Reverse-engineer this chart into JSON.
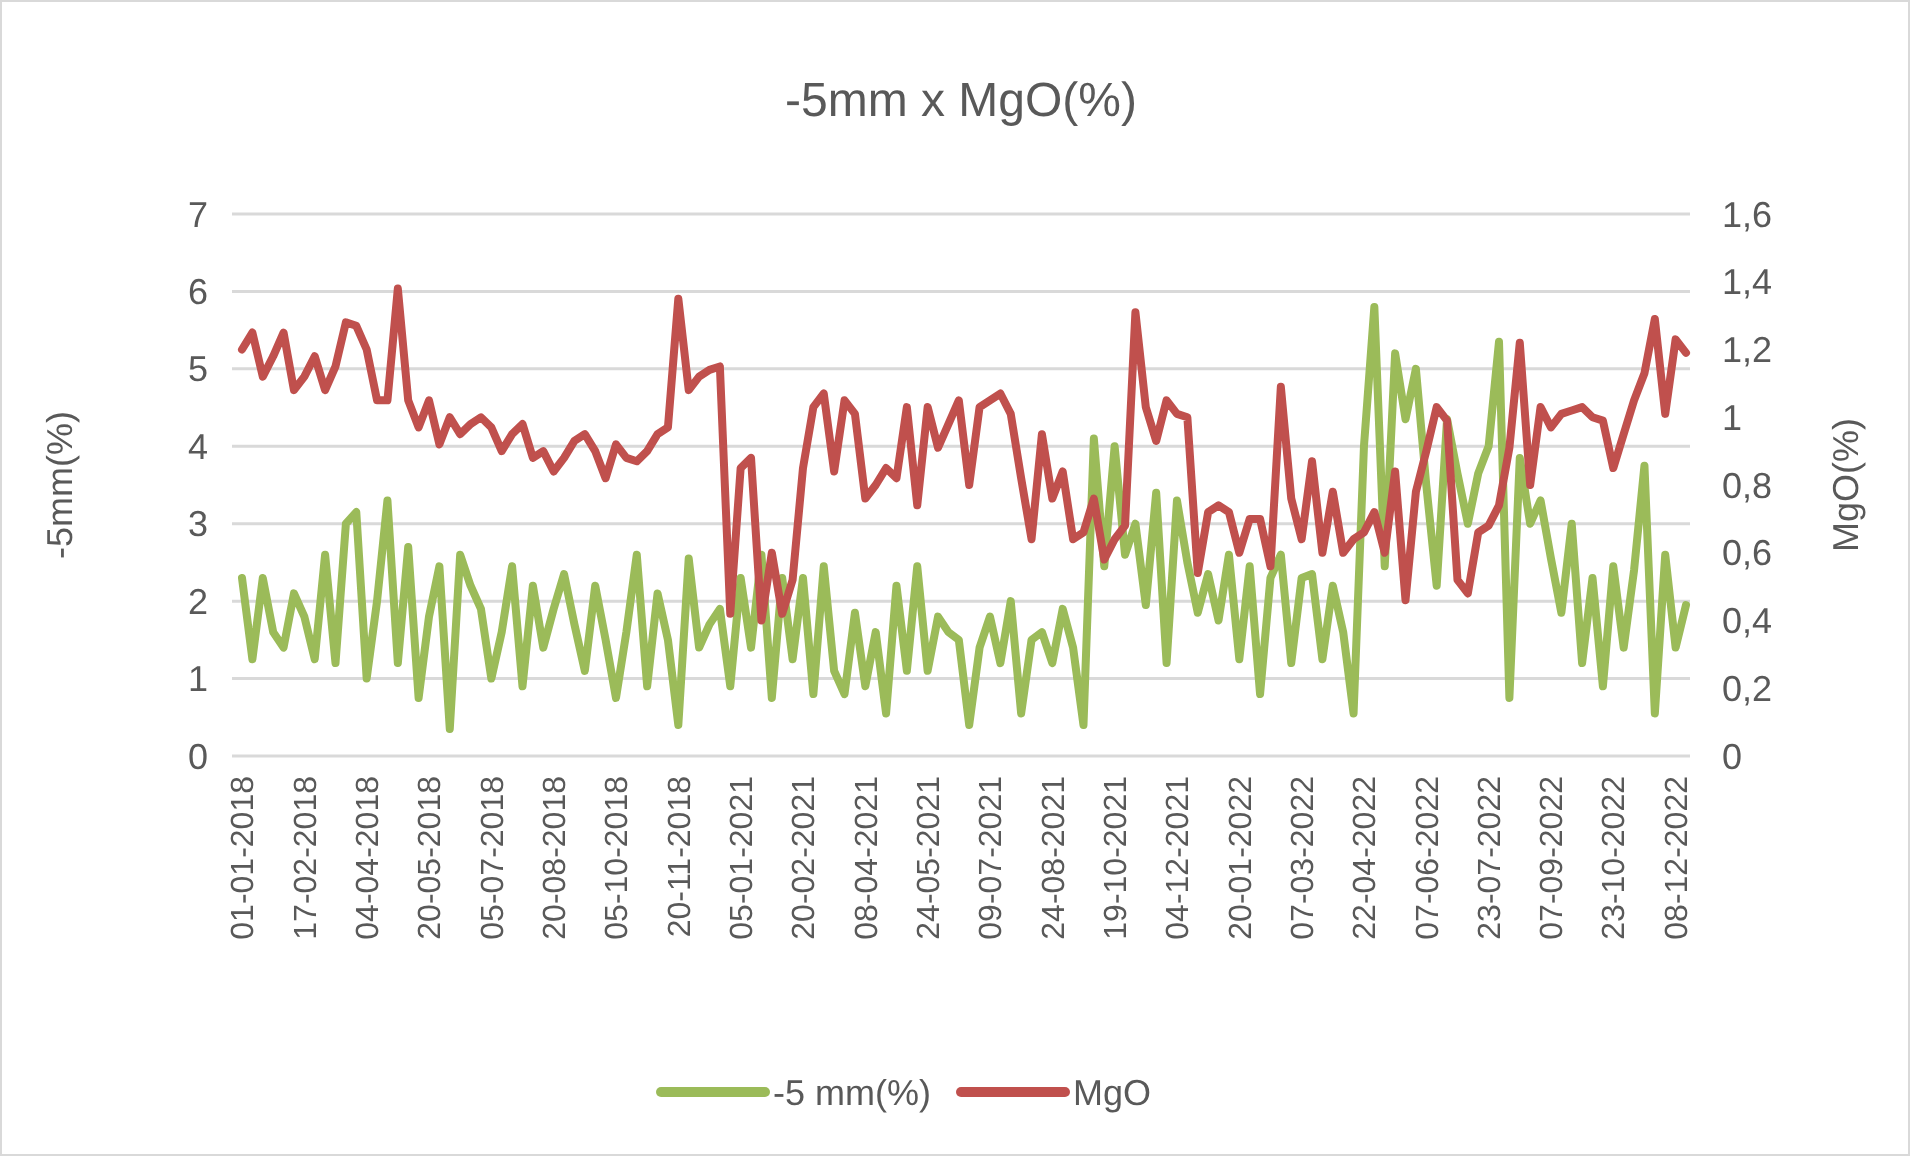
{
  "chart_data": {
    "type": "line",
    "title": "-5mm x MgO(%)",
    "ylabel": "-5mm(%)",
    "y2label": "MgO(%)",
    "categories": [
      "01-01-2018",
      null,
      null,
      null,
      null,
      null,
      "17-02-2018",
      null,
      null,
      null,
      null,
      null,
      "04-04-2018",
      null,
      null,
      null,
      null,
      null,
      "20-05-2018",
      null,
      null,
      null,
      null,
      null,
      "05-07-2018",
      null,
      null,
      null,
      null,
      null,
      "20-08-2018",
      null,
      null,
      null,
      null,
      null,
      "05-10-2018",
      null,
      null,
      null,
      null,
      null,
      "20-11-2018",
      null,
      null,
      null,
      null,
      null,
      "05-01-2021",
      null,
      null,
      null,
      null,
      null,
      "20-02-2021",
      null,
      null,
      null,
      null,
      null,
      "08-04-2021",
      null,
      null,
      null,
      null,
      null,
      "24-05-2021",
      null,
      null,
      null,
      null,
      null,
      "09-07-2021",
      null,
      null,
      null,
      null,
      null,
      "24-08-2021",
      null,
      null,
      null,
      null,
      null,
      "19-10-2021",
      null,
      null,
      null,
      null,
      null,
      "04-12-2021",
      null,
      null,
      null,
      null,
      null,
      "20-01-2022",
      null,
      null,
      null,
      null,
      null,
      "07-03-2022",
      null,
      null,
      null,
      null,
      null,
      "22-04-2022",
      null,
      null,
      null,
      null,
      null,
      "07-06-2022",
      null,
      null,
      null,
      null,
      null,
      "23-07-2022",
      null,
      null,
      null,
      null,
      null,
      "07-09-2022",
      null,
      null,
      null,
      null,
      null,
      "23-10-2022",
      null,
      null,
      null,
      null,
      null,
      "08-12-2022",
      null
    ],
    "series": [
      {
        "name": "-5 mm(%)",
        "color": "#9bbb59",
        "values": [
          2.3,
          1.25,
          2.3,
          1.6,
          1.4,
          2.1,
          1.8,
          1.25,
          2.6,
          1.2,
          3.0,
          3.15,
          1.0,
          2.0,
          3.3,
          1.2,
          2.7,
          0.75,
          1.8,
          2.45,
          0.35,
          2.6,
          2.2,
          1.9,
          1.0,
          1.6,
          2.45,
          0.9,
          2.2,
          1.4,
          1.9,
          2.35,
          1.7,
          1.1,
          2.2,
          1.5,
          0.75,
          1.6,
          2.6,
          0.9,
          2.1,
          1.5,
          0.4,
          2.55,
          1.4,
          1.7,
          1.9,
          0.9,
          2.3,
          1.4,
          2.6,
          0.75,
          2.3,
          1.25,
          2.3,
          0.8,
          2.45,
          1.1,
          0.8,
          1.85,
          0.9,
          1.6,
          0.55,
          2.2,
          1.1,
          2.45,
          1.1,
          1.8,
          1.6,
          1.5,
          0.4,
          1.4,
          1.8,
          1.2,
          2.0,
          0.55,
          1.5,
          1.6,
          1.2,
          1.9,
          1.4,
          0.4,
          4.1,
          2.45,
          4.0,
          2.6,
          3.0,
          1.95,
          3.4,
          1.2,
          3.3,
          2.5,
          1.85,
          2.35,
          1.75,
          2.6,
          1.25,
          2.45,
          0.8,
          2.3,
          2.6,
          1.2,
          2.3,
          2.35,
          1.25,
          2.2,
          1.6,
          0.55,
          4.0,
          5.8,
          2.45,
          5.2,
          4.35,
          5.0,
          3.5,
          2.2,
          4.35,
          3.65,
          3.0,
          3.65,
          4.0,
          5.35,
          0.75,
          3.85,
          3.0,
          3.3,
          2.55,
          1.85,
          3.0,
          1.2,
          2.3,
          0.9,
          2.45,
          1.4,
          2.4,
          3.75,
          0.55,
          2.6,
          1.4,
          1.95
        ]
      },
      {
        "name": "MgO",
        "color": "#c0504d",
        "axis": "y2",
        "values": [
          1.2,
          1.25,
          1.12,
          1.18,
          1.25,
          1.08,
          1.12,
          1.18,
          1.08,
          1.15,
          1.28,
          1.27,
          1.2,
          1.05,
          1.05,
          1.38,
          1.05,
          0.97,
          1.05,
          0.92,
          1.0,
          0.95,
          0.98,
          1.0,
          0.97,
          0.9,
          0.95,
          0.98,
          0.88,
          0.9,
          0.84,
          0.88,
          0.93,
          0.95,
          0.9,
          0.82,
          0.92,
          0.88,
          0.87,
          0.9,
          0.95,
          0.97,
          1.35,
          1.08,
          1.12,
          1.14,
          1.15,
          0.42,
          0.85,
          0.88,
          0.4,
          0.6,
          0.42,
          0.52,
          0.85,
          1.03,
          1.07,
          0.84,
          1.05,
          1.01,
          0.76,
          0.8,
          0.85,
          0.82,
          1.03,
          0.74,
          1.03,
          0.91,
          0.98,
          1.05,
          0.8,
          1.03,
          1.05,
          1.07,
          1.01,
          0.82,
          0.64,
          0.95,
          0.76,
          0.84,
          0.64,
          0.66,
          0.76,
          0.58,
          0.64,
          0.68,
          1.31,
          1.03,
          0.93,
          1.05,
          1.01,
          1.0,
          0.54,
          0.72,
          0.74,
          0.72,
          0.6,
          0.7,
          0.7,
          0.56,
          1.09,
          0.76,
          0.64,
          0.87,
          0.6,
          0.78,
          0.6,
          0.64,
          0.66,
          0.72,
          0.6,
          0.84,
          0.46,
          0.78,
          0.9,
          1.03,
          0.99,
          0.52,
          0.48,
          0.66,
          0.68,
          0.74,
          0.91,
          1.22,
          0.8,
          1.03,
          0.97,
          1.01,
          1.02,
          1.03,
          1.0,
          0.99,
          0.85,
          0.95,
          1.05,
          1.13,
          1.29,
          1.01,
          1.23,
          1.19
        ]
      }
    ],
    "ylim": [
      0,
      7
    ],
    "yticks": [
      0,
      1,
      2,
      3,
      4,
      5,
      6,
      7
    ],
    "y2lim": [
      0,
      1.6
    ],
    "y2ticks": [
      0,
      {
        "value": 0.2,
        "label": "0,2"
      },
      {
        "value": 0.4,
        "label": "0,4"
      },
      {
        "value": 0.6,
        "label": "0,6"
      },
      {
        "value": 0.8,
        "label": "0,8"
      },
      {
        "value": 1,
        "label": "1"
      },
      {
        "value": 1.2,
        "label": "1,2"
      },
      {
        "value": 1.4,
        "label": "1,4"
      },
      {
        "value": 1.6,
        "label": "1,6"
      }
    ],
    "grid": "y",
    "legend": "bottom",
    "line_style": "solid",
    "marker": "none"
  }
}
